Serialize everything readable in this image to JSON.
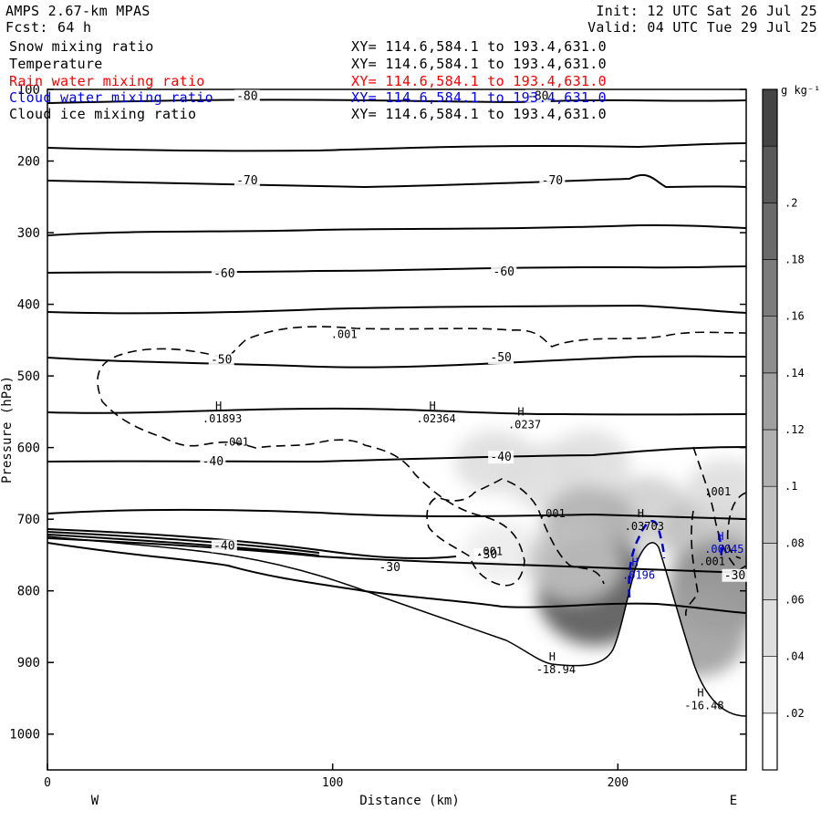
{
  "header": {
    "model": "AMPS 2.67-km MPAS",
    "fcst_label": "Fcst:",
    "fcst_value": "64 h",
    "init": "Init: 12 UTC Sat 26 Jul 25",
    "valid": "Valid: 04 UTC Tue 29 Jul 25"
  },
  "fields": [
    {
      "name": "Snow mixing ratio",
      "xy": "XY= 114.6,584.1 to 193.4,631.0",
      "color": "#000000"
    },
    {
      "name": "Temperature",
      "xy": "XY= 114.6,584.1 to 193.4,631.0",
      "color": "#000000"
    },
    {
      "name": "Rain water mixing ratio",
      "xy": "XY= 114.6,584.1 to 193.4,631.0",
      "color": "#ff0000"
    },
    {
      "name": "Cloud water mixing ratio",
      "xy": "XY= 114.6,584.1 to 193.4,631.0",
      "color": "#0000ff"
    },
    {
      "name": "Cloud ice mixing ratio",
      "xy": "XY= 114.6,584.1 to 193.4,631.0",
      "color": "#000000"
    }
  ],
  "chart_data": {
    "type": "heatmap",
    "xlabel": "Distance (km)",
    "ylabel": "Pressure (hPa)",
    "xlim": [
      0,
      245
    ],
    "ylim": [
      1050,
      100
    ],
    "x_ticks": [
      0,
      100,
      200
    ],
    "y_ticks": [
      100,
      200,
      300,
      400,
      500,
      600,
      700,
      800,
      900,
      1000
    ],
    "x_ends": {
      "left": "W",
      "right": "E"
    },
    "colorbar": {
      "unit": "g kg⁻¹",
      "ticks": [
        ".02",
        ".04",
        ".06",
        ".08",
        ".1",
        ".12",
        ".14",
        ".16",
        ".18",
        ".2"
      ],
      "levels": [
        0,
        0.02,
        0.04,
        0.06,
        0.08,
        0.1,
        0.12,
        0.14,
        0.16,
        0.18,
        0.2,
        0.22
      ],
      "colors": [
        "#ffffff",
        "#ececec",
        "#dedede",
        "#cfcfcf",
        "#c0c0c0",
        "#b0b0b0",
        "#a0a0a0",
        "#8e8e8e",
        "#7c7c7c",
        "#6a6a6a",
        "#585858",
        "#444444"
      ]
    },
    "snow_field": [
      {
        "x": 157,
        "p": 620,
        "value": 0.04
      },
      {
        "x": 175,
        "p": 640,
        "value": 0.05
      },
      {
        "x": 190,
        "p": 620,
        "value": 0.04
      },
      {
        "x": 210,
        "p": 690,
        "value": 0.07
      },
      {
        "x": 190,
        "p": 710,
        "value": 0.1
      },
      {
        "x": 160,
        "p": 745,
        "value": 0.03
      },
      {
        "x": 192,
        "p": 800,
        "value": 0.2
      },
      {
        "x": 185,
        "p": 760,
        "value": 0.09
      },
      {
        "x": 232,
        "p": 720,
        "value": 0.09
      },
      {
        "x": 236,
        "p": 795,
        "value": 0.15
      },
      {
        "x": 228,
        "p": 860,
        "value": 0.12
      },
      {
        "x": 238,
        "p": 660,
        "value": 0.04
      }
    ],
    "temperature_labels": [
      {
        "text": "-80",
        "x": 70,
        "p": 112
      },
      {
        "text": "-80",
        "x": 172,
        "p": 112
      },
      {
        "text": "-70",
        "x": 70,
        "p": 230
      },
      {
        "text": "-70",
        "x": 177,
        "p": 230
      },
      {
        "text": "-60",
        "x": 62,
        "p": 360
      },
      {
        "text": "-60",
        "x": 160,
        "p": 357
      },
      {
        "text": "-50",
        "x": 61,
        "p": 480
      },
      {
        "text": "-50",
        "x": 159,
        "p": 477
      },
      {
        "text": "-40",
        "x": 58,
        "p": 622
      },
      {
        "text": "-40",
        "x": 159,
        "p": 616
      },
      {
        "text": "-40",
        "x": 62,
        "p": 740
      },
      {
        "text": "-30",
        "x": 120,
        "p": 770
      },
      {
        "text": "-30",
        "x": 154,
        "p": 752
      },
      {
        "text": "-30",
        "x": 241,
        "p": 781
      }
    ],
    "ice_labels": [
      {
        "text": ".001",
        "x": 104,
        "p": 447
      },
      {
        "text": ".001",
        "x": 66,
        "p": 597
      },
      {
        "text": ".001",
        "x": 177,
        "p": 697
      },
      {
        "text": ".001",
        "x": 235,
        "p": 667
      },
      {
        "text": ".001",
        "x": 155,
        "p": 750
      },
      {
        "text": ".001",
        "x": 233,
        "p": 764
      }
    ],
    "extrema": [
      {
        "type": "H",
        "value": ".01893",
        "x": 60,
        "p": 560,
        "color": "#000000"
      },
      {
        "type": "H",
        "value": ".02364",
        "x": 135,
        "p": 560,
        "color": "#000000"
      },
      {
        "type": "H",
        "value": ".0237",
        "x": 166,
        "p": 568,
        "color": "#000000"
      },
      {
        "type": "H",
        "value": ".03703",
        "x": 208,
        "p": 710,
        "color": "#000000"
      },
      {
        "type": "H",
        "value": "-18.94",
        "x": 177,
        "p": 910,
        "color": "#000000"
      },
      {
        "type": "H",
        "value": "-16.48",
        "x": 229,
        "p": 960,
        "color": "#000000"
      },
      {
        "type": "H",
        "value": ".0196",
        "x": 206,
        "p": 778,
        "color": "#0000cc"
      },
      {
        "type": "H",
        "value": ".00045",
        "x": 236,
        "p": 742,
        "color": "#0000cc"
      }
    ]
  }
}
